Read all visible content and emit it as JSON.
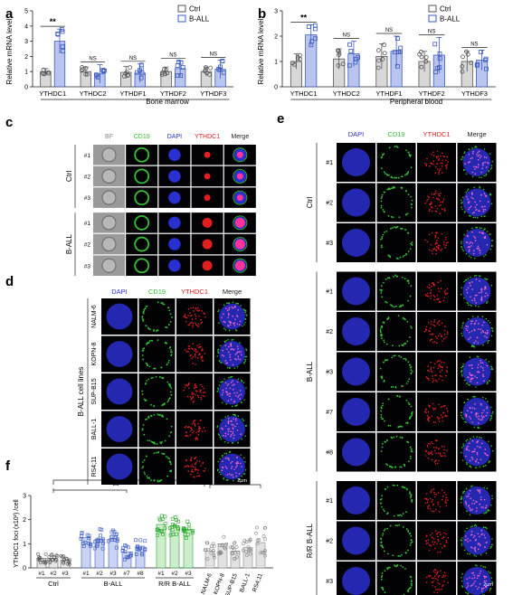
{
  "panels": {
    "a": {
      "letter": "a",
      "ylabel": "Relative mRNA level",
      "xlabel": "Bone marrow",
      "legend": [
        "Ctrl",
        "B-ALL"
      ],
      "significance": [
        "**",
        "NS",
        "NS",
        "NS",
        "NS"
      ]
    },
    "b": {
      "letter": "b",
      "ylabel": "Relative mRNA level",
      "xlabel": "Peripheral blood",
      "legend": [
        "Ctrl",
        "B-ALL"
      ],
      "significance": [
        "**",
        "NS",
        "NS",
        "NS",
        "NS"
      ]
    },
    "c": {
      "letter": "c",
      "columns": [
        "BF",
        "CD19",
        "DAPI",
        "YTHDC1",
        "Merge"
      ],
      "groups": [
        {
          "label": "Ctrl",
          "rows": [
            "#1",
            "#2",
            "#3"
          ]
        },
        {
          "label": "B-ALL",
          "rows": [
            "#1",
            "#2",
            "#3"
          ]
        }
      ]
    },
    "d": {
      "letter": "d",
      "columns": [
        "DAPI",
        "CD19",
        "YTHDC1",
        "Merge"
      ],
      "group_label": "B-ALL cell lines",
      "rows": [
        "NALM-6",
        "KOPN-8",
        "SUP-B15",
        "BALL-1",
        "RS4;11"
      ],
      "scale": "2μm"
    },
    "e": {
      "letter": "e",
      "columns": [
        "DAPI",
        "CD19",
        "YTHDC1",
        "Merge"
      ],
      "groups": [
        {
          "label": "Ctrl",
          "rows": [
            "#1",
            "#2",
            "#3"
          ]
        },
        {
          "label": "B-ALL",
          "rows": [
            "#1",
            "#2",
            "#3",
            "#7",
            "#8"
          ]
        },
        {
          "label": "R/R B-ALL",
          "rows": [
            "#1",
            "#2",
            "#3"
          ]
        }
      ],
      "scale": "2μm"
    },
    "f": {
      "letter": "f",
      "ylabel": "YTHDC1 foci (x10²) /cell",
      "group_labels": [
        "Ctrl",
        "B-ALL",
        "R/R B-ALL"
      ],
      "significance": [
        "**",
        "**"
      ]
    }
  },
  "colors": {
    "ctrl": "#555555",
    "ball": "#3d5bbf",
    "rr": "#2aa52a",
    "lines": "#888888",
    "cd19": "#35c035",
    "dapi": "#2a2fd0",
    "ythdc1": "#e02020"
  },
  "chart_data": [
    {
      "type": "bar",
      "panel": "a",
      "categories": [
        "YTHDC1",
        "YTHDC2",
        "YTHDF1",
        "YTHDF2",
        "YTHDF3"
      ],
      "ylim": [
        0,
        5
      ],
      "yticks": [
        0,
        1,
        2,
        3,
        4,
        5
      ],
      "xlabel": "Bone marrow",
      "ylabel": "Relative mRNA level",
      "series": [
        {
          "name": "Ctrl",
          "values": [
            1.0,
            1.0,
            0.95,
            1.0,
            1.0
          ],
          "errors": [
            0.2,
            0.3,
            0.4,
            0.3,
            0.3
          ]
        },
        {
          "name": "B-ALL",
          "values": [
            3.0,
            0.85,
            0.9,
            1.2,
            1.15
          ],
          "errors": [
            0.8,
            0.6,
            0.6,
            0.5,
            0.6
          ]
        }
      ]
    },
    {
      "type": "bar",
      "panel": "b",
      "categories": [
        "YTHDC1",
        "YTHDC2",
        "YTHDF1",
        "YTHDF2",
        "YTHDF3"
      ],
      "ylim": [
        0,
        3
      ],
      "yticks": [
        0,
        1,
        2,
        3
      ],
      "xlabel": "Peripheral blood",
      "ylabel": "Relative mRNA level",
      "series": [
        {
          "name": "Ctrl",
          "values": [
            1.0,
            1.1,
            1.2,
            1.0,
            1.0
          ],
          "errors": [
            0.3,
            0.4,
            0.5,
            0.4,
            0.4
          ]
        },
        {
          "name": "B-ALL",
          "values": [
            2.05,
            1.3,
            1.4,
            1.25,
            1.05
          ],
          "errors": [
            0.4,
            0.5,
            0.6,
            0.7,
            0.4
          ]
        }
      ]
    },
    {
      "type": "bar",
      "panel": "f",
      "categories": [
        "#1",
        "#2",
        "#3",
        "#1",
        "#2",
        "#3",
        "#7",
        "#8",
        "#1",
        "#2",
        "#3",
        "NALM-6",
        "KOPN-8",
        "SUP-B15",
        "BALL-1",
        "RS4;11"
      ],
      "groups": [
        "Ctrl",
        "Ctrl",
        "Ctrl",
        "B-ALL",
        "B-ALL",
        "B-ALL",
        "B-ALL",
        "B-ALL",
        "R/R B-ALL",
        "R/R B-ALL",
        "R/R B-ALL",
        "lines",
        "lines",
        "lines",
        "lines",
        "lines"
      ],
      "ylim": [
        0,
        3
      ],
      "yticks": [
        0,
        1,
        2,
        3
      ],
      "ylabel": "YTHDC1 foci (x10²) /cell",
      "values": [
        0.4,
        0.38,
        0.32,
        1.25,
        1.2,
        1.2,
        0.65,
        0.9,
        1.8,
        1.75,
        1.6,
        0.7,
        1.0,
        0.7,
        0.85,
        1.05
      ],
      "spread": [
        0.18,
        0.15,
        0.15,
        0.3,
        0.35,
        0.35,
        0.25,
        0.3,
        0.4,
        0.35,
        0.3,
        0.3,
        0.35,
        0.3,
        0.3,
        0.55
      ]
    }
  ]
}
